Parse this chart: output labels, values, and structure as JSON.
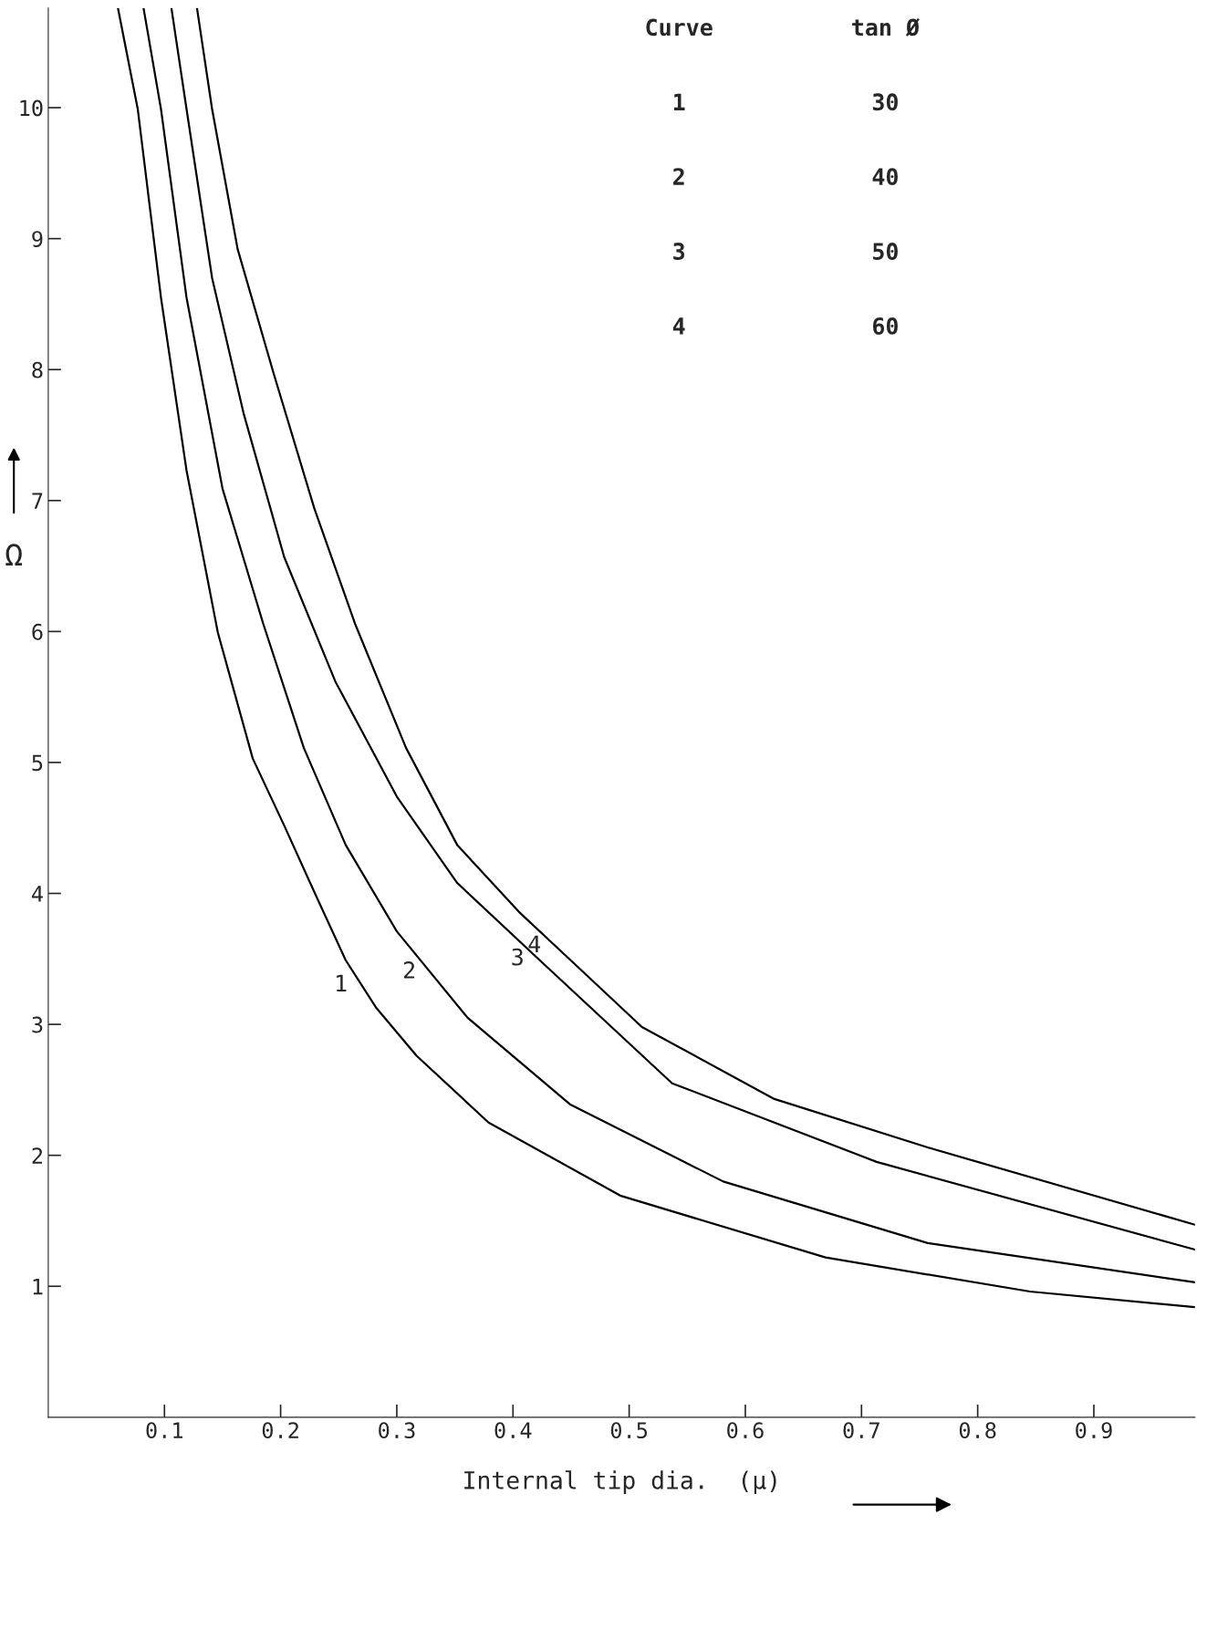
{
  "chart_data": {
    "type": "line",
    "xlabel": "Internal tip dia.  (μ)",
    "ylabel": "Ω",
    "xlim": [
      0,
      0.987
    ],
    "ylim": [
      0,
      10.76
    ],
    "xticks": [
      0.1,
      0.2,
      0.3,
      0.4,
      0.5,
      0.6,
      0.7,
      0.8,
      0.9
    ],
    "yticks": [
      1,
      2,
      3,
      4,
      5,
      6,
      7,
      8,
      9,
      10
    ],
    "grid": false,
    "legend": false,
    "marker": "none",
    "line_style": "solid",
    "series": [
      {
        "name": "1",
        "color": "#000000",
        "x": [
          0.06,
          0.077,
          0.097,
          0.119,
          0.146,
          0.176,
          0.203,
          0.229,
          0.256,
          0.282,
          0.317,
          0.379,
          0.493,
          0.669,
          0.845,
          0.987
        ],
        "values": [
          10.76,
          9.99,
          8.55,
          7.23,
          5.99,
          5.03,
          4.52,
          4.01,
          3.49,
          3.13,
          2.76,
          2.25,
          1.69,
          1.22,
          0.96,
          0.84
        ]
      },
      {
        "name": "2",
        "color": "#000000",
        "x": [
          0.082,
          0.097,
          0.119,
          0.15,
          0.185,
          0.22,
          0.256,
          0.3,
          0.361,
          0.449,
          0.581,
          0.757,
          0.987
        ],
        "values": [
          10.76,
          9.99,
          8.55,
          7.09,
          6.06,
          5.11,
          4.37,
          3.71,
          3.05,
          2.39,
          1.8,
          1.33,
          1.03
        ]
      },
      {
        "name": "3",
        "color": "#000000",
        "x": [
          0.106,
          0.119,
          0.141,
          0.168,
          0.203,
          0.247,
          0.3,
          0.352,
          0.423,
          0.537,
          0.713,
          0.987
        ],
        "values": [
          10.76,
          9.99,
          8.7,
          7.67,
          6.57,
          5.62,
          4.74,
          4.08,
          3.49,
          2.55,
          1.95,
          1.28
        ]
      },
      {
        "name": "4",
        "color": "#000000",
        "x": [
          0.128,
          0.141,
          0.163,
          0.194,
          0.229,
          0.264,
          0.308,
          0.352,
          0.405,
          0.458,
          0.511,
          0.625,
          0.757,
          0.987
        ],
        "values": [
          10.76,
          9.99,
          8.92,
          7.97,
          6.94,
          6.06,
          5.11,
          4.37,
          3.86,
          3.42,
          2.98,
          2.43,
          2.06,
          1.47
        ]
      }
    ],
    "annotations": [
      "Curve",
      "tan Ø",
      "1",
      "30",
      "2",
      "40",
      "3",
      "50",
      "4",
      "60"
    ]
  }
}
